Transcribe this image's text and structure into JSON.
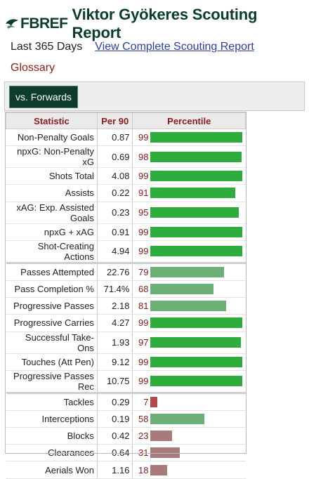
{
  "header": {
    "logo_fb": "FB",
    "logo_ref": "REF",
    "title": "Viktor Gyökeres Scouting Report"
  },
  "period": "Last 365 Days",
  "link": "View Complete Scouting Report",
  "glossary": "Glossary",
  "tab": "vs. Forwards",
  "columns": [
    "Statistic",
    "Per 90",
    "Percentile"
  ],
  "colors": {
    "high": "#2eac3c",
    "mid": "#6db076",
    "low": "#a87a7a",
    "lowest": "#b04b4b"
  },
  "rows": [
    {
      "stat": "Non-Penalty Goals",
      "per90": "0.87",
      "pct": "99"
    },
    {
      "stat": "npxG: Non-Penalty xG",
      "per90": "0.69",
      "pct": "98"
    },
    {
      "stat": "Shots Total",
      "per90": "4.08",
      "pct": "99"
    },
    {
      "stat": "Assists",
      "per90": "0.22",
      "pct": "91"
    },
    {
      "stat": "xAG: Exp. Assisted Goals",
      "per90": "0.23",
      "pct": "95"
    },
    {
      "stat": "npxG + xAG",
      "per90": "0.91",
      "pct": "99"
    },
    {
      "stat": "Shot-Creating Actions",
      "per90": "4.94",
      "pct": "99"
    },
    {
      "stat": "Passes Attempted",
      "per90": "22.76",
      "pct": "79"
    },
    {
      "stat": "Pass Completion %",
      "per90": "71.4%",
      "pct": "68"
    },
    {
      "stat": "Progressive Passes",
      "per90": "2.18",
      "pct": "81"
    },
    {
      "stat": "Progressive Carries",
      "per90": "4.27",
      "pct": "99"
    },
    {
      "stat": "Successful Take-Ons",
      "per90": "1.93",
      "pct": "97"
    },
    {
      "stat": "Touches (Att Pen)",
      "per90": "9.12",
      "pct": "99"
    },
    {
      "stat": "Progressive Passes Rec",
      "per90": "10.75",
      "pct": "99"
    },
    {
      "stat": "Tackles",
      "per90": "0.29",
      "pct": "7"
    },
    {
      "stat": "Interceptions",
      "per90": "0.19",
      "pct": "58"
    },
    {
      "stat": "Blocks",
      "per90": "0.42",
      "pct": "23"
    },
    {
      "stat": "Clearances",
      "per90": "0.64",
      "pct": "31"
    },
    {
      "stat": "Aerials Won",
      "per90": "1.16",
      "pct": "18"
    }
  ]
}
